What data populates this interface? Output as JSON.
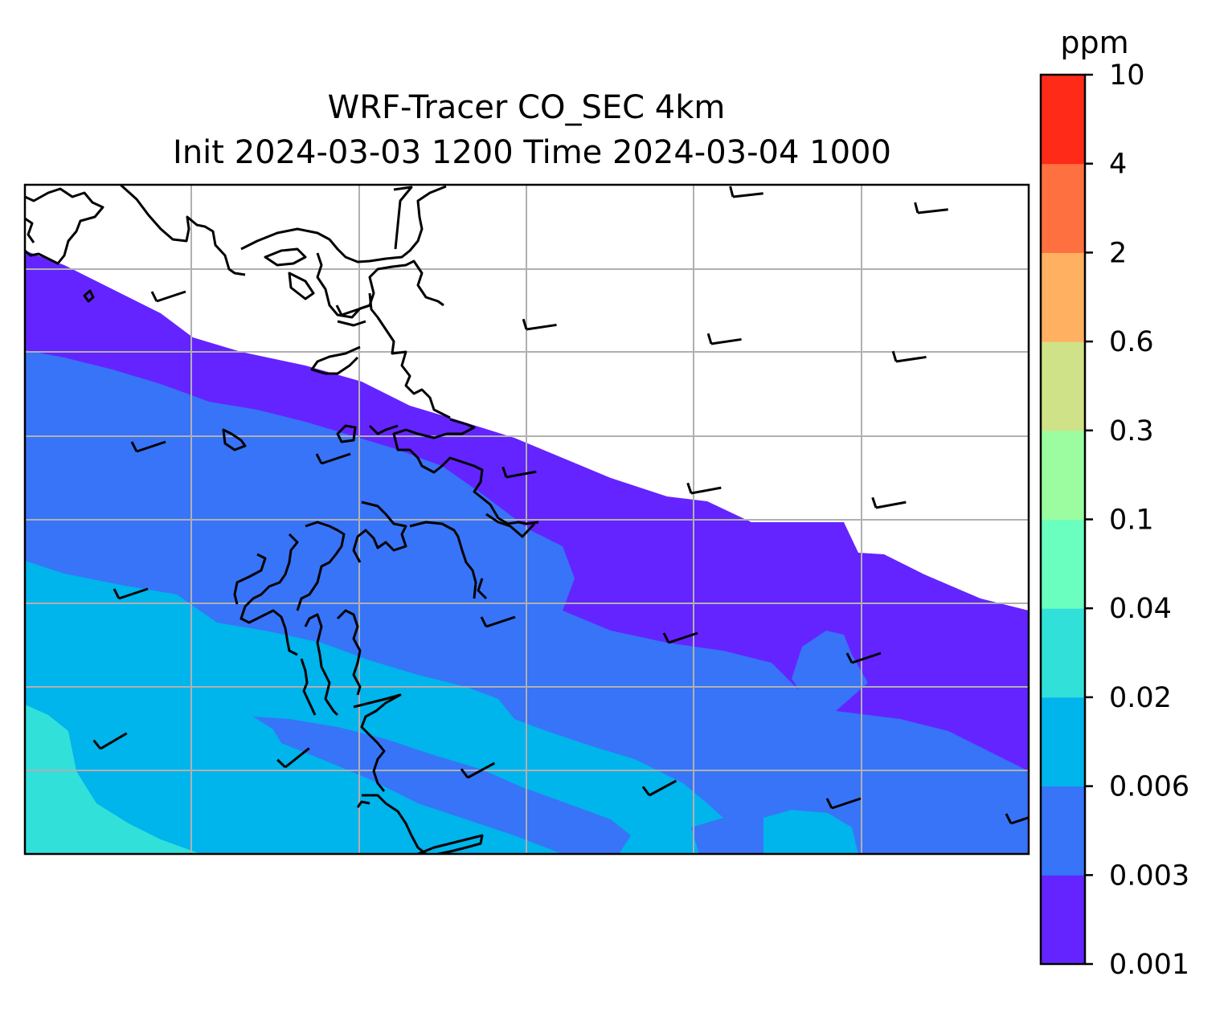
{
  "title": {
    "line1": "WRF-Tracer CO_SEC 4km",
    "line2": "Init 2024-03-03 1200 Time 2024-03-04 1000"
  },
  "colorbar": {
    "unit": "ppm",
    "levels": [
      {
        "label": "0.001",
        "color": "#6424ff"
      },
      {
        "label": "0.003",
        "color": "#3774f8"
      },
      {
        "label": "0.006",
        "color": "#00b4ec"
      },
      {
        "label": "0.02",
        "color": "#32e0da"
      },
      {
        "label": "0.04",
        "color": "#6affbe"
      },
      {
        "label": "0.1",
        "color": "#9bfda0"
      },
      {
        "label": "0.3",
        "color": "#d0e288"
      },
      {
        "label": "0.6",
        "color": "#ffb060"
      },
      {
        "label": "2",
        "color": "#ff7040"
      },
      {
        "label": "4",
        "color": "#ff2a18"
      },
      {
        "label": "10",
        "color": null
      }
    ]
  },
  "map": {
    "field_colors": {
      "lt_0_003": "#6424ff",
      "0_003_to_0_006": "#3774f8",
      "0_006_to_0_02": "#00b4ec",
      "0_02_to_0_04": "#32e0da"
    },
    "gridline_color": "#b0b0b0",
    "coastline_color": "#000000",
    "gridlines": true
  }
}
